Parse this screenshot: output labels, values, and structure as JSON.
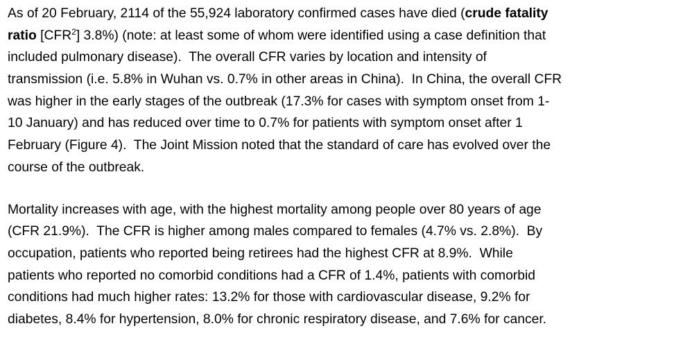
{
  "paragraphs": [
    {
      "lines": [
        [
          {
            "text": "As of 20 February, 2114 of the 55,924 laboratory confirmed cases have died ("
          },
          {
            "text": "crude fatality",
            "style": "bold"
          }
        ],
        [
          {
            "text": "ratio",
            "style": "bold"
          },
          {
            "text": " [CFR"
          },
          {
            "text": "2",
            "style": "sup"
          },
          {
            "text": "] 3.8%) (note: at least some of whom were identified using a case definition that"
          }
        ],
        [
          {
            "text": "included pulmonary disease).  The overall CFR varies by location and intensity of"
          }
        ],
        [
          {
            "text": "transmission (i.e. 5.8% in Wuhan vs. 0.7% in other areas in China).  In China, the overall CFR"
          }
        ],
        [
          {
            "text": "was higher in the early stages of the outbreak (17.3% for cases with symptom onset from 1-"
          }
        ],
        [
          {
            "text": "10 January) and has reduced over time to 0.7% for patients with symptom onset after 1"
          }
        ],
        [
          {
            "text": "February (Figure 4).  The Joint Mission noted that the standard of care has evolved over the"
          }
        ],
        [
          {
            "text": "course of the outbreak."
          }
        ]
      ]
    },
    {
      "lines": [
        [
          {
            "text": "Mortality increases with age, with the highest mortality among people over 80 years of age"
          }
        ],
        [
          {
            "text": "(CFR 21.9%).  The CFR is higher among males compared to females (4.7% vs. 2.8%).  By"
          }
        ],
        [
          {
            "text": "occupation, patients who reported being retirees had the highest CFR at 8.9%.  While"
          }
        ],
        [
          {
            "text": "patients who reported no comorbid conditions had a CFR of 1.4%, patients with comorbid"
          }
        ],
        [
          {
            "text": "conditions had much higher rates: 13.2% for those with cardiovascular disease, 9.2% for"
          }
        ],
        [
          {
            "text": "diabetes, 8.4% for hypertension, 8.0% for chronic respiratory disease, and 7.6% for cancer."
          }
        ]
      ]
    }
  ]
}
